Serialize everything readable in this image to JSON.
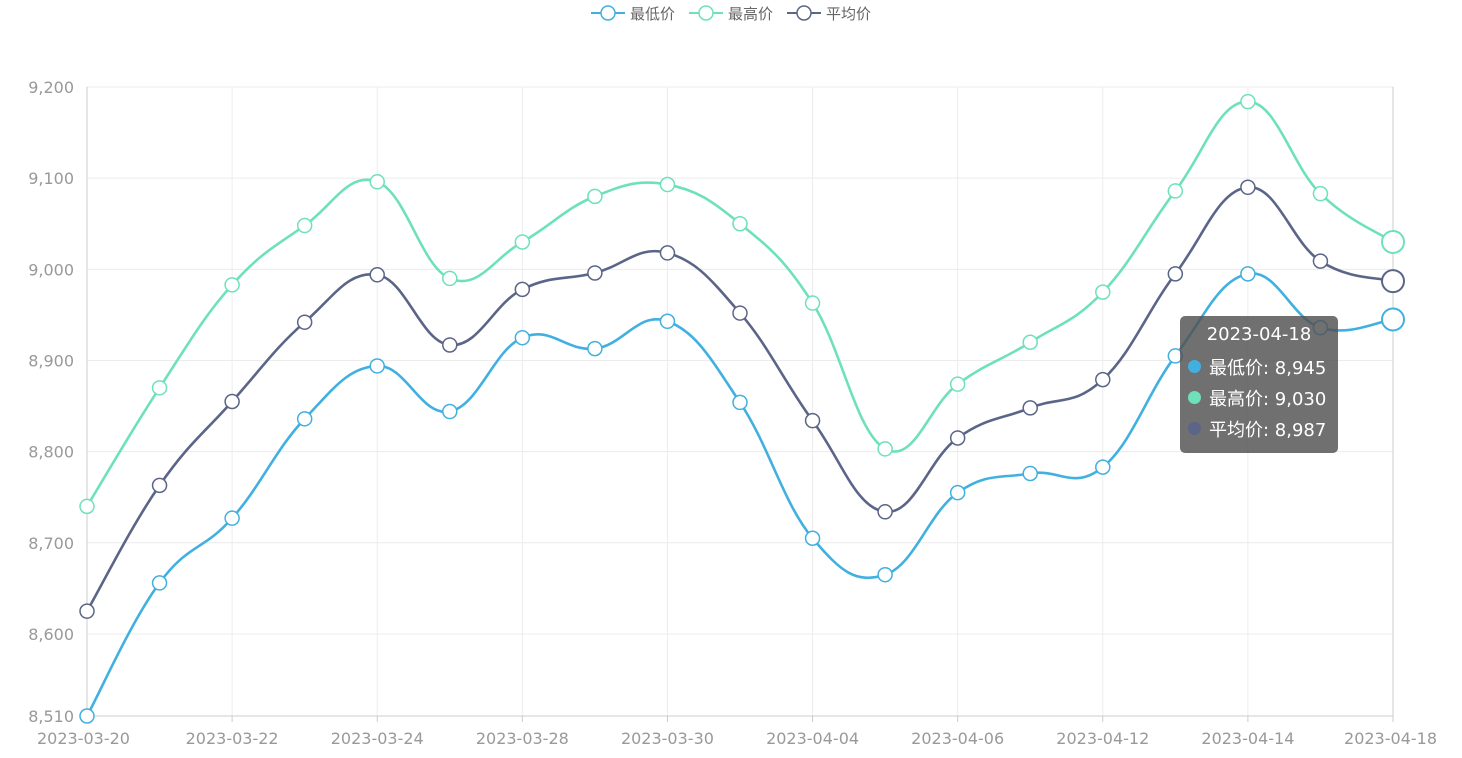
{
  "chart_data": {
    "type": "line",
    "smooth": true,
    "x": [
      "2023-03-20",
      "2023-03-21",
      "2023-03-22",
      "2023-03-23",
      "2023-03-24",
      "2023-03-25",
      "2023-03-28",
      "2023-03-29",
      "2023-03-30",
      "2023-03-31",
      "2023-04-04",
      "2023-04-05",
      "2023-04-06",
      "2023-04-07",
      "2023-04-12",
      "2023-04-13",
      "2023-04-14",
      "2023-04-15",
      "2023-04-18"
    ],
    "x_tick_labels": [
      "2023-03-20",
      "2023-03-22",
      "2023-03-24",
      "2023-03-28",
      "2023-03-30",
      "2023-04-04",
      "2023-04-06",
      "2023-04-12",
      "2023-04-14",
      "2023-04-18"
    ],
    "series": [
      {
        "name": "最低价",
        "color": "#41b0e0",
        "values": [
          8510,
          8656,
          8727,
          8836,
          8894,
          8844,
          8925,
          8913,
          8943,
          8854,
          8705,
          8665,
          8755,
          8776,
          8783,
          8905,
          8995,
          8936,
          8945
        ]
      },
      {
        "name": "最高价",
        "color": "#6ee1bc",
        "values": [
          8740,
          8870,
          8983,
          9048,
          9096,
          8990,
          9030,
          9080,
          9093,
          9050,
          8963,
          8803,
          8874,
          8920,
          8975,
          9086,
          9184,
          9083,
          9030
        ]
      },
      {
        "name": "平均价",
        "color": "#5b6587",
        "values": [
          8625,
          8763,
          8855,
          8942,
          8994,
          8917,
          8978,
          8996,
          9018,
          8952,
          8834,
          8734,
          8815,
          8848,
          8879,
          8995,
          9090,
          9009,
          8987
        ]
      }
    ],
    "y_ticks": [
      "8,510",
      "8,600",
      "8,700",
      "8,800",
      "8,900",
      "9,000",
      "9,100",
      "9,200"
    ],
    "ylim": [
      8510,
      9200
    ],
    "grid": true,
    "legend_position": "top-center"
  },
  "tooltip": {
    "title": "2023-04-18",
    "rows": [
      {
        "label": "最低价: 8,945",
        "color": "#41b0e0"
      },
      {
        "label": "最高价: 9,030",
        "color": "#6ee1bc"
      },
      {
        "label": "平均价: 8,987",
        "color": "#5b6587"
      }
    ]
  }
}
